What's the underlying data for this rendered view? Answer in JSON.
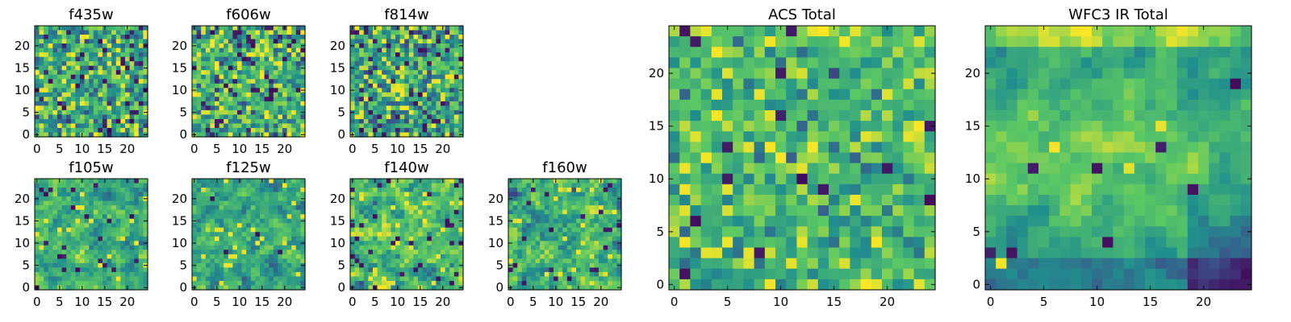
{
  "colors": {
    "background": "#ffffff",
    "axis": "#000000",
    "colormap": "viridis",
    "viridis_stops": [
      "#440154",
      "#3b528b",
      "#21908d",
      "#5dc963",
      "#fde725"
    ]
  },
  "chart_data": [
    {
      "type": "heatmap",
      "panel": "f435w",
      "title": "f435w",
      "shape": [
        25,
        25
      ],
      "xlim": [
        -0.5,
        24.5
      ],
      "ylim": [
        -0.5,
        24.5
      ],
      "xticks": [
        0,
        5,
        10,
        15,
        20
      ],
      "xtick_labels": [
        "0",
        "5",
        "10",
        "15",
        "20"
      ],
      "yticks": [
        0,
        5,
        10,
        15,
        20
      ],
      "ytick_labels": [
        "0",
        "5",
        "10",
        "15",
        "20"
      ],
      "value_range": [
        0,
        1
      ],
      "pattern": {
        "seed": 11,
        "mean": 0.6,
        "spread": 0.2,
        "dark_frac": 0.05,
        "bright_frac": 0.05
      }
    },
    {
      "type": "heatmap",
      "panel": "f606w",
      "title": "f606w",
      "shape": [
        25,
        25
      ],
      "xlim": [
        -0.5,
        24.5
      ],
      "ylim": [
        -0.5,
        24.5
      ],
      "xticks": [
        0,
        5,
        10,
        15,
        20
      ],
      "xtick_labels": [
        "0",
        "5",
        "10",
        "15",
        "20"
      ],
      "yticks": [
        0,
        5,
        10,
        15,
        20
      ],
      "ytick_labels": [
        "0",
        "5",
        "10",
        "15",
        "20"
      ],
      "value_range": [
        0,
        1
      ],
      "pattern": {
        "seed": 23,
        "mean": 0.62,
        "spread": 0.2,
        "dark_frac": 0.06,
        "bright_frac": 0.05
      }
    },
    {
      "type": "heatmap",
      "panel": "f814w",
      "title": "f814w",
      "shape": [
        25,
        25
      ],
      "xlim": [
        -0.5,
        24.5
      ],
      "ylim": [
        -0.5,
        24.5
      ],
      "xticks": [
        0,
        5,
        10,
        15,
        20
      ],
      "xtick_labels": [
        "0",
        "5",
        "10",
        "15",
        "20"
      ],
      "yticks": [
        0,
        5,
        10,
        15,
        20
      ],
      "ytick_labels": [
        "0",
        "5",
        "10",
        "15",
        "20"
      ],
      "value_range": [
        0,
        1
      ],
      "pattern": {
        "seed": 37,
        "mean": 0.6,
        "spread": 0.21,
        "dark_frac": 0.05,
        "bright_frac": 0.05
      }
    },
    {
      "type": "heatmap",
      "panel": "f105w",
      "title": "f105w",
      "shape": [
        25,
        25
      ],
      "xlim": [
        -0.5,
        24.5
      ],
      "ylim": [
        -0.5,
        24.5
      ],
      "xticks": [
        0,
        5,
        10,
        15,
        20
      ],
      "xtick_labels": [
        "0",
        "5",
        "10",
        "15",
        "20"
      ],
      "yticks": [
        0,
        5,
        10,
        15,
        20
      ],
      "ytick_labels": [
        "0",
        "5",
        "10",
        "15",
        "20"
      ],
      "value_range": [
        0,
        1
      ],
      "pattern": {
        "seed": 41,
        "mean": 0.63,
        "spread": 0.15,
        "dark_frac": 0.03,
        "bright_frac": 0.04,
        "smooth": 0.5
      }
    },
    {
      "type": "heatmap",
      "panel": "f125w",
      "title": "f125w",
      "shape": [
        25,
        25
      ],
      "xlim": [
        -0.5,
        24.5
      ],
      "ylim": [
        -0.5,
        24.5
      ],
      "xticks": [
        0,
        5,
        10,
        15,
        20
      ],
      "xtick_labels": [
        "0",
        "5",
        "10",
        "15",
        "20"
      ],
      "yticks": [
        0,
        5,
        10,
        15,
        20
      ],
      "ytick_labels": [
        "0",
        "5",
        "10",
        "15",
        "20"
      ],
      "value_range": [
        0,
        1
      ],
      "pattern": {
        "seed": 53,
        "mean": 0.6,
        "spread": 0.15,
        "dark_frac": 0.02,
        "bright_frac": 0.04,
        "smooth": 0.5
      }
    },
    {
      "type": "heatmap",
      "panel": "f140w",
      "title": "f140w",
      "shape": [
        25,
        25
      ],
      "xlim": [
        -0.5,
        24.5
      ],
      "ylim": [
        -0.5,
        24.5
      ],
      "xticks": [
        0,
        5,
        10,
        15,
        20
      ],
      "xtick_labels": [
        "0",
        "5",
        "10",
        "15",
        "20"
      ],
      "yticks": [
        0,
        5,
        10,
        15,
        20
      ],
      "ytick_labels": [
        "0",
        "5",
        "10",
        "15",
        "20"
      ],
      "value_range": [
        0,
        1
      ],
      "pattern": {
        "seed": 67,
        "mean": 0.65,
        "spread": 0.16,
        "dark_frac": 0.04,
        "bright_frac": 0.05,
        "smooth": 0.45
      }
    },
    {
      "type": "heatmap",
      "panel": "f160w",
      "title": "f160w",
      "shape": [
        25,
        25
      ],
      "xlim": [
        -0.5,
        24.5
      ],
      "ylim": [
        -0.5,
        24.5
      ],
      "xticks": [
        0,
        5,
        10,
        15,
        20
      ],
      "xtick_labels": [
        "0",
        "5",
        "10",
        "15",
        "20"
      ],
      "yticks": [
        0,
        5,
        10,
        15,
        20
      ],
      "ytick_labels": [
        "0",
        "5",
        "10",
        "15",
        "20"
      ],
      "value_range": [
        0,
        1
      ],
      "pattern": {
        "seed": 79,
        "mean": 0.64,
        "spread": 0.17,
        "dark_frac": 0.04,
        "bright_frac": 0.04,
        "smooth": 0.45
      }
    },
    {
      "type": "heatmap",
      "panel": "ACS Total",
      "title": "ACS Total",
      "shape": [
        25,
        25
      ],
      "xlim": [
        -0.5,
        24.5
      ],
      "ylim": [
        -0.5,
        24.5
      ],
      "xticks": [
        0,
        5,
        10,
        15,
        20
      ],
      "xtick_labels": [
        "0",
        "5",
        "10",
        "15",
        "20"
      ],
      "yticks": [
        0,
        5,
        10,
        15,
        20
      ],
      "ytick_labels": [
        "0",
        "5",
        "10",
        "15",
        "20"
      ],
      "value_range": [
        0,
        1
      ],
      "pattern": {
        "seed": 97,
        "mean": 0.66,
        "spread": 0.15,
        "dark_frac": 0.03,
        "bright_frac": 0.05
      }
    },
    {
      "type": "heatmap",
      "panel": "WFC3 IR Total",
      "title": "WFC3 IR Total",
      "shape": [
        25,
        25
      ],
      "xlim": [
        -0.5,
        24.5
      ],
      "ylim": [
        -0.5,
        24.5
      ],
      "xticks": [
        0,
        5,
        10,
        15,
        20
      ],
      "xtick_labels": [
        "0",
        "5",
        "10",
        "15",
        "20"
      ],
      "yticks": [
        0,
        5,
        10,
        15,
        20
      ],
      "ytick_labels": [
        "0",
        "5",
        "10",
        "15",
        "20"
      ],
      "value_range": [
        0,
        1
      ],
      "pattern": {
        "seed": 113,
        "mean": 0.6,
        "spread": 0.1,
        "dark_frac": 0.01,
        "bright_frac": 0.02,
        "smooth": 0.6,
        "bright_band": true,
        "dark_lower_right": true
      }
    }
  ]
}
